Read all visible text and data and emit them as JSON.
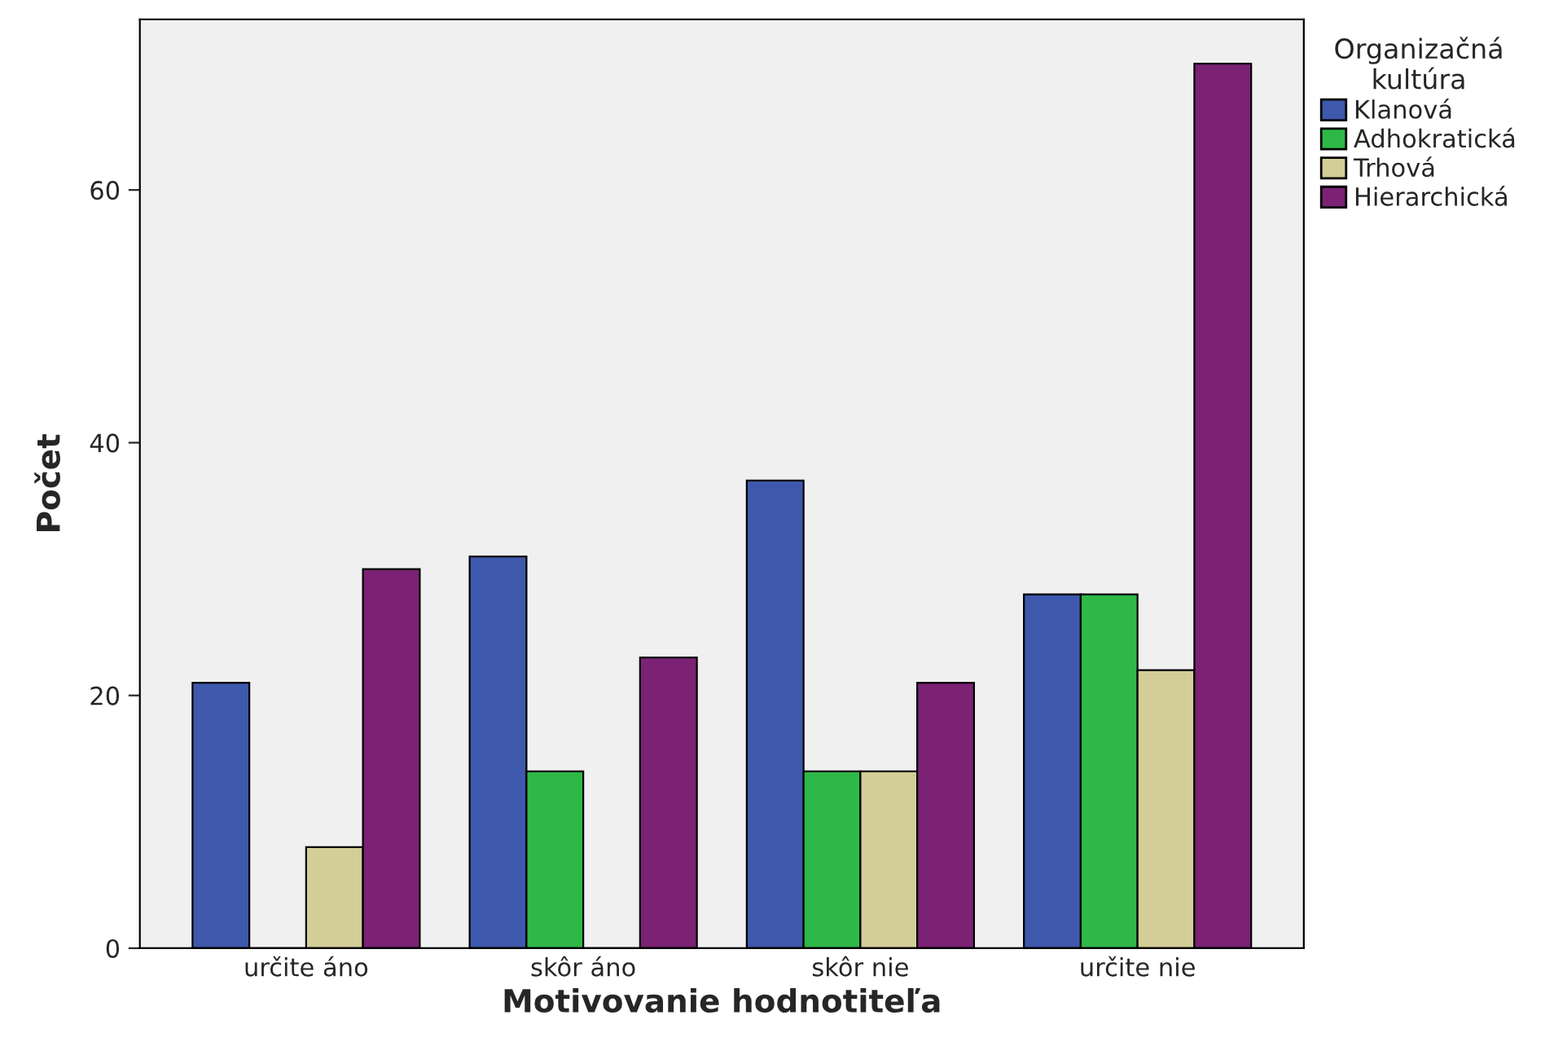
{
  "chart_data": {
    "type": "bar",
    "xlabel": "Motivovanie hodnotiteľa",
    "ylabel": "Počet",
    "legend_title": "Organizačná\nkultúra",
    "categories": [
      "určite áno",
      "skôr áno",
      "skôr nie",
      "určite nie"
    ],
    "series": [
      {
        "name": "Klanová",
        "color": "#3e58ac",
        "values": [
          21,
          31,
          37,
          28
        ]
      },
      {
        "name": "Adhokratická",
        "color": "#2eb848",
        "values": [
          0,
          14,
          14,
          28
        ]
      },
      {
        "name": "Trhová",
        "color": "#d3ce97",
        "values": [
          8,
          0,
          14,
          22
        ]
      },
      {
        "name": "Hierarchická",
        "color": "#7b2275",
        "values": [
          30,
          23,
          21,
          70
        ]
      }
    ],
    "ylim": [
      0,
      73.5
    ],
    "yticks": [
      0,
      20,
      40,
      60
    ],
    "grid": false,
    "legend": "top right"
  }
}
